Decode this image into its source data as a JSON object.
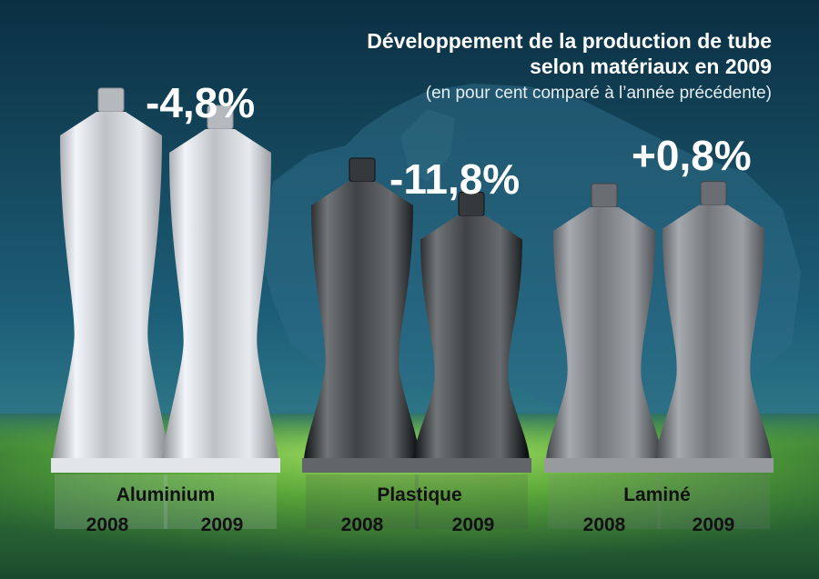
{
  "chart_data": {
    "type": "bar",
    "title": "Développement de la production de tube",
    "title_line2": "selon matériaux en 2009",
    "subtitle": "(en pour cent comparé à l’année précédente)",
    "categories": [
      "Aluminium",
      "Plastique",
      "Laminé"
    ],
    "years": [
      "2008",
      "2009"
    ],
    "changes": [
      "-4,8%",
      "-11,8%",
      "+0,8%"
    ],
    "change_values": [
      -4.8,
      -11.8,
      0.8
    ],
    "series": [
      {
        "values": [
          100,
          100,
          100
        ]
      },
      {
        "values": [
          95.2,
          88.2,
          100.8
        ]
      }
    ],
    "colors": {
      "aluminium": "#c9ccd0",
      "plastique": "#4a4d50",
      "lamine": "#7e8286",
      "background_top": "#0e3b50",
      "floor": "#5fae3a",
      "text": "#ffffff",
      "label_text": "#111111"
    },
    "grid": false,
    "legend": "none"
  }
}
